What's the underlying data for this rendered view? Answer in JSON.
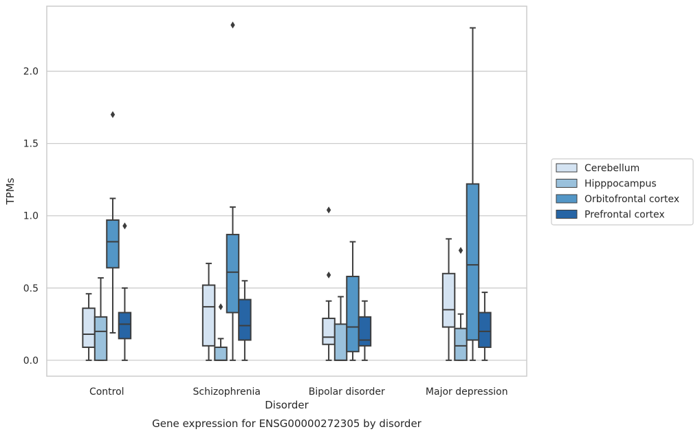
{
  "chart_data": {
    "type": "boxplot",
    "xlabel": "Disorder",
    "ylabel": "TPMs",
    "caption": "Gene expression for ENSG00000272305 by disorder",
    "ylim": [
      -0.11,
      2.45
    ],
    "yticks": [
      "0.0",
      "0.5",
      "1.0",
      "1.5",
      "2.0"
    ],
    "ytick_values": [
      0.0,
      0.5,
      1.0,
      1.5,
      2.0
    ],
    "grid": "horizontal",
    "legend_position": "right",
    "categories": [
      "Control",
      "Schizophrenia",
      "Bipolar disorder",
      "Major depression"
    ],
    "series": [
      {
        "name": "Cerebellum",
        "color": "#d4e3f2",
        "boxes": [
          {
            "whisker_low": 0.0,
            "q1": 0.09,
            "median": 0.18,
            "q3": 0.36,
            "whisker_high": 0.46,
            "outliers": []
          },
          {
            "whisker_low": 0.0,
            "q1": 0.1,
            "median": 0.37,
            "q3": 0.52,
            "whisker_high": 0.67,
            "outliers": []
          },
          {
            "whisker_low": 0.0,
            "q1": 0.11,
            "median": 0.16,
            "q3": 0.29,
            "whisker_high": 0.41,
            "outliers": [
              0.59,
              1.04
            ]
          },
          {
            "whisker_low": 0.0,
            "q1": 0.23,
            "median": 0.35,
            "q3": 0.6,
            "whisker_high": 0.84,
            "outliers": []
          }
        ]
      },
      {
        "name": "Hipppocampus",
        "color": "#9ac1dc",
        "boxes": [
          {
            "whisker_low": 0.0,
            "q1": 0.0,
            "median": 0.2,
            "q3": 0.3,
            "whisker_high": 0.57,
            "outliers": []
          },
          {
            "whisker_low": 0.0,
            "q1": 0.0,
            "median": 0.0,
            "q3": 0.09,
            "whisker_high": 0.15,
            "outliers": [
              0.37
            ]
          },
          {
            "whisker_low": 0.0,
            "q1": 0.0,
            "median": 0.0,
            "q3": 0.25,
            "whisker_high": 0.44,
            "outliers": []
          },
          {
            "whisker_low": 0.0,
            "q1": 0.0,
            "median": 0.1,
            "q3": 0.22,
            "whisker_high": 0.32,
            "outliers": [
              0.76
            ]
          }
        ]
      },
      {
        "name": "Orbitofrontal cortex",
        "color": "#5396c6",
        "boxes": [
          {
            "whisker_low": 0.19,
            "q1": 0.64,
            "median": 0.82,
            "q3": 0.97,
            "whisker_high": 1.12,
            "outliers": [
              1.7
            ]
          },
          {
            "whisker_low": 0.0,
            "q1": 0.33,
            "median": 0.61,
            "q3": 0.87,
            "whisker_high": 1.06,
            "outliers": [
              2.32
            ]
          },
          {
            "whisker_low": 0.0,
            "q1": 0.06,
            "median": 0.23,
            "q3": 0.58,
            "whisker_high": 0.82,
            "outliers": []
          },
          {
            "whisker_low": 0.0,
            "q1": 0.14,
            "median": 0.66,
            "q3": 1.22,
            "whisker_high": 2.3,
            "outliers": []
          }
        ]
      },
      {
        "name": "Prefrontal cortex",
        "color": "#2765a5",
        "boxes": [
          {
            "whisker_low": 0.0,
            "q1": 0.15,
            "median": 0.25,
            "q3": 0.33,
            "whisker_high": 0.5,
            "outliers": [
              0.93
            ]
          },
          {
            "whisker_low": 0.0,
            "q1": 0.14,
            "median": 0.24,
            "q3": 0.42,
            "whisker_high": 0.55,
            "outliers": []
          },
          {
            "whisker_low": 0.0,
            "q1": 0.1,
            "median": 0.14,
            "q3": 0.3,
            "whisker_high": 0.41,
            "outliers": []
          },
          {
            "whisker_low": 0.0,
            "q1": 0.09,
            "median": 0.2,
            "q3": 0.33,
            "whisker_high": 0.47,
            "outliers": []
          }
        ]
      }
    ]
  },
  "colors": {
    "frame": "#cccccc",
    "grid": "#cccccc",
    "box_edge": "#3d3d3d"
  }
}
